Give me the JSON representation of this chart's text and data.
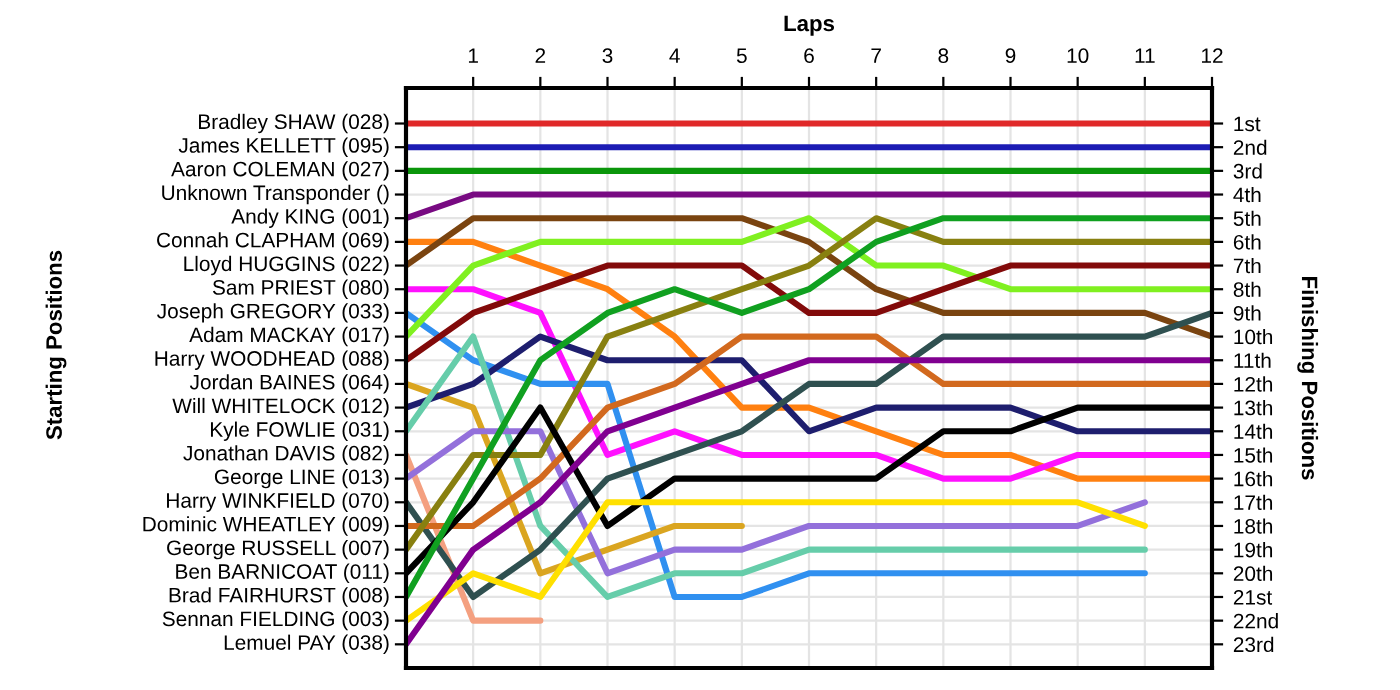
{
  "chart_data": {
    "type": "line",
    "xlabel": "Laps",
    "ylabel": "Finishing Positions",
    "x": [
      0,
      1,
      2,
      3,
      4,
      5,
      6,
      7,
      8,
      9,
      10,
      11,
      12
    ],
    "xlim": [
      0,
      12
    ],
    "xticks": [
      1,
      2,
      3,
      4,
      5,
      6,
      7,
      8,
      9,
      10,
      11,
      12
    ],
    "ylim": [
      24,
      -0.5
    ],
    "yticks": [
      {
        "value": 1,
        "label": "1st"
      },
      {
        "value": 2,
        "label": "2nd"
      },
      {
        "value": 3,
        "label": "3rd"
      },
      {
        "value": 4,
        "label": "4th"
      },
      {
        "value": 5,
        "label": "5th"
      },
      {
        "value": 6,
        "label": "6th"
      },
      {
        "value": 7,
        "label": "7th"
      },
      {
        "value": 8,
        "label": "8th"
      },
      {
        "value": 9,
        "label": "9th"
      },
      {
        "value": 10,
        "label": "10th"
      },
      {
        "value": 11,
        "label": "11th"
      },
      {
        "value": 12,
        "label": "12th"
      },
      {
        "value": 13,
        "label": "13th"
      },
      {
        "value": 14,
        "label": "14th"
      },
      {
        "value": 15,
        "label": "15th"
      },
      {
        "value": 16,
        "label": "16th"
      },
      {
        "value": 17,
        "label": "17th"
      },
      {
        "value": 18,
        "label": "18th"
      },
      {
        "value": 19,
        "label": "19th"
      },
      {
        "value": 20,
        "label": "20th"
      },
      {
        "value": 21,
        "label": "21st"
      },
      {
        "value": 22,
        "label": "22nd"
      },
      {
        "value": 23,
        "label": "23rd"
      }
    ],
    "grid": true,
    "marker": "none",
    "line_style": "solid",
    "annotations": [
      "Starting Positions",
      "Bradley SHAW (028)",
      "James KELLETT (095)",
      "Aaron COLEMAN (027)",
      "Unknown Transponder ()",
      "Andy KING (001)",
      "Connah CLAPHAM (069)",
      "Lloyd HUGGINS (022)",
      "Sam PRIEST (080)",
      "Joseph GREGORY (033)",
      "Adam MACKAY (017)",
      "Harry WOODHEAD (088)",
      "Jordan BAINES (064)",
      "Will WHITELOCK (012)",
      "Kyle FOWLIE (031)",
      "Jonathan DAVIS (082)",
      "George LINE (013)",
      "Harry WINKFIELD (070)",
      "Dominic WHEATLEY (009)",
      "George RUSSELL (007)",
      "Ben BARNICOAT (011)",
      "Brad FAIRHURST (008)",
      "Sennan FIELDING (003)",
      "Lemuel PAY (038)"
    ],
    "series": [
      {
        "color": "#e02828",
        "values": [
          1,
          1,
          1,
          1,
          1,
          1,
          1,
          1,
          1,
          1,
          1,
          1,
          1
        ]
      },
      {
        "color": "#1c1cb4",
        "values": [
          2,
          2,
          2,
          2,
          2,
          2,
          2,
          2,
          2,
          2,
          2,
          2,
          2
        ]
      },
      {
        "color": "#0a960a",
        "values": [
          3,
          3,
          3,
          3,
          3,
          3,
          3,
          3,
          3,
          3,
          3,
          3,
          3
        ]
      },
      {
        "color": "#780a82",
        "values": [
          5,
          4,
          4,
          4,
          4,
          4,
          4,
          4,
          4,
          4,
          4,
          4,
          4
        ]
      },
      {
        "color": "#ff8010",
        "values": [
          6,
          6,
          7,
          8,
          10,
          13,
          13,
          14,
          15,
          15,
          16,
          16,
          16
        ]
      },
      {
        "color": "#7a4410",
        "values": [
          7,
          5,
          5,
          5,
          5,
          5,
          6,
          8,
          9,
          9,
          9,
          9,
          10
        ]
      },
      {
        "color": "#ff10ff",
        "values": [
          8,
          8,
          9,
          15,
          14,
          15,
          15,
          15,
          16,
          16,
          15,
          15,
          15
        ]
      },
      {
        "color": "#3090f0",
        "values": [
          9,
          11,
          12,
          12,
          21,
          21,
          20,
          20,
          20,
          20,
          20,
          20,
          null
        ]
      },
      {
        "color": "#80f020",
        "values": [
          10,
          7,
          6,
          6,
          6,
          6,
          5,
          7,
          7,
          8,
          8,
          8,
          8
        ]
      },
      {
        "color": "#820a0a",
        "values": [
          11,
          9,
          8,
          7,
          7,
          7,
          9,
          9,
          8,
          7,
          7,
          7,
          7
        ]
      },
      {
        "color": "#daa520",
        "values": [
          12,
          13,
          20,
          19,
          18,
          18,
          null,
          null,
          null,
          null,
          null,
          null,
          null
        ]
      },
      {
        "color": "#1e1e6e",
        "values": [
          13,
          12,
          10,
          11,
          11,
          11,
          14,
          13,
          13,
          13,
          14,
          14,
          14
        ]
      },
      {
        "color": "#66cdaa",
        "values": [
          14,
          10,
          18,
          21,
          20,
          20,
          19,
          19,
          19,
          19,
          19,
          19,
          null
        ]
      },
      {
        "color": "#f4a080",
        "values": [
          15,
          22,
          22,
          null,
          null,
          null,
          null,
          null,
          null,
          null,
          null,
          null,
          null
        ]
      },
      {
        "color": "#9370db",
        "values": [
          16,
          14,
          14,
          20,
          19,
          19,
          18,
          18,
          18,
          18,
          18,
          17,
          null
        ]
      },
      {
        "color": "#2f5050",
        "values": [
          17,
          21,
          19,
          16,
          15,
          14,
          12,
          12,
          10,
          10,
          10,
          10,
          9
        ]
      },
      {
        "color": "#d2691e",
        "values": [
          18,
          18,
          16,
          13,
          12,
          10,
          10,
          10,
          12,
          12,
          12,
          12,
          12
        ]
      },
      {
        "color": "#888010",
        "values": [
          19,
          15,
          15,
          10,
          9,
          8,
          7,
          5,
          6,
          6,
          6,
          6,
          6
        ]
      },
      {
        "color": "#000000",
        "values": [
          20,
          17,
          13,
          18,
          16,
          16,
          16,
          16,
          14,
          14,
          13,
          13,
          13
        ]
      },
      {
        "color": "#10a020",
        "values": [
          21,
          16,
          11,
          9,
          8,
          9,
          8,
          6,
          5,
          5,
          5,
          5,
          5
        ]
      },
      {
        "color": "#ffe000",
        "values": [
          22,
          20,
          21,
          17,
          17,
          17,
          17,
          17,
          17,
          17,
          17,
          18,
          null
        ]
      },
      {
        "color": "#800090",
        "values": [
          23,
          19,
          17,
          14,
          13,
          12,
          11,
          11,
          11,
          11,
          11,
          11,
          11
        ]
      }
    ]
  }
}
